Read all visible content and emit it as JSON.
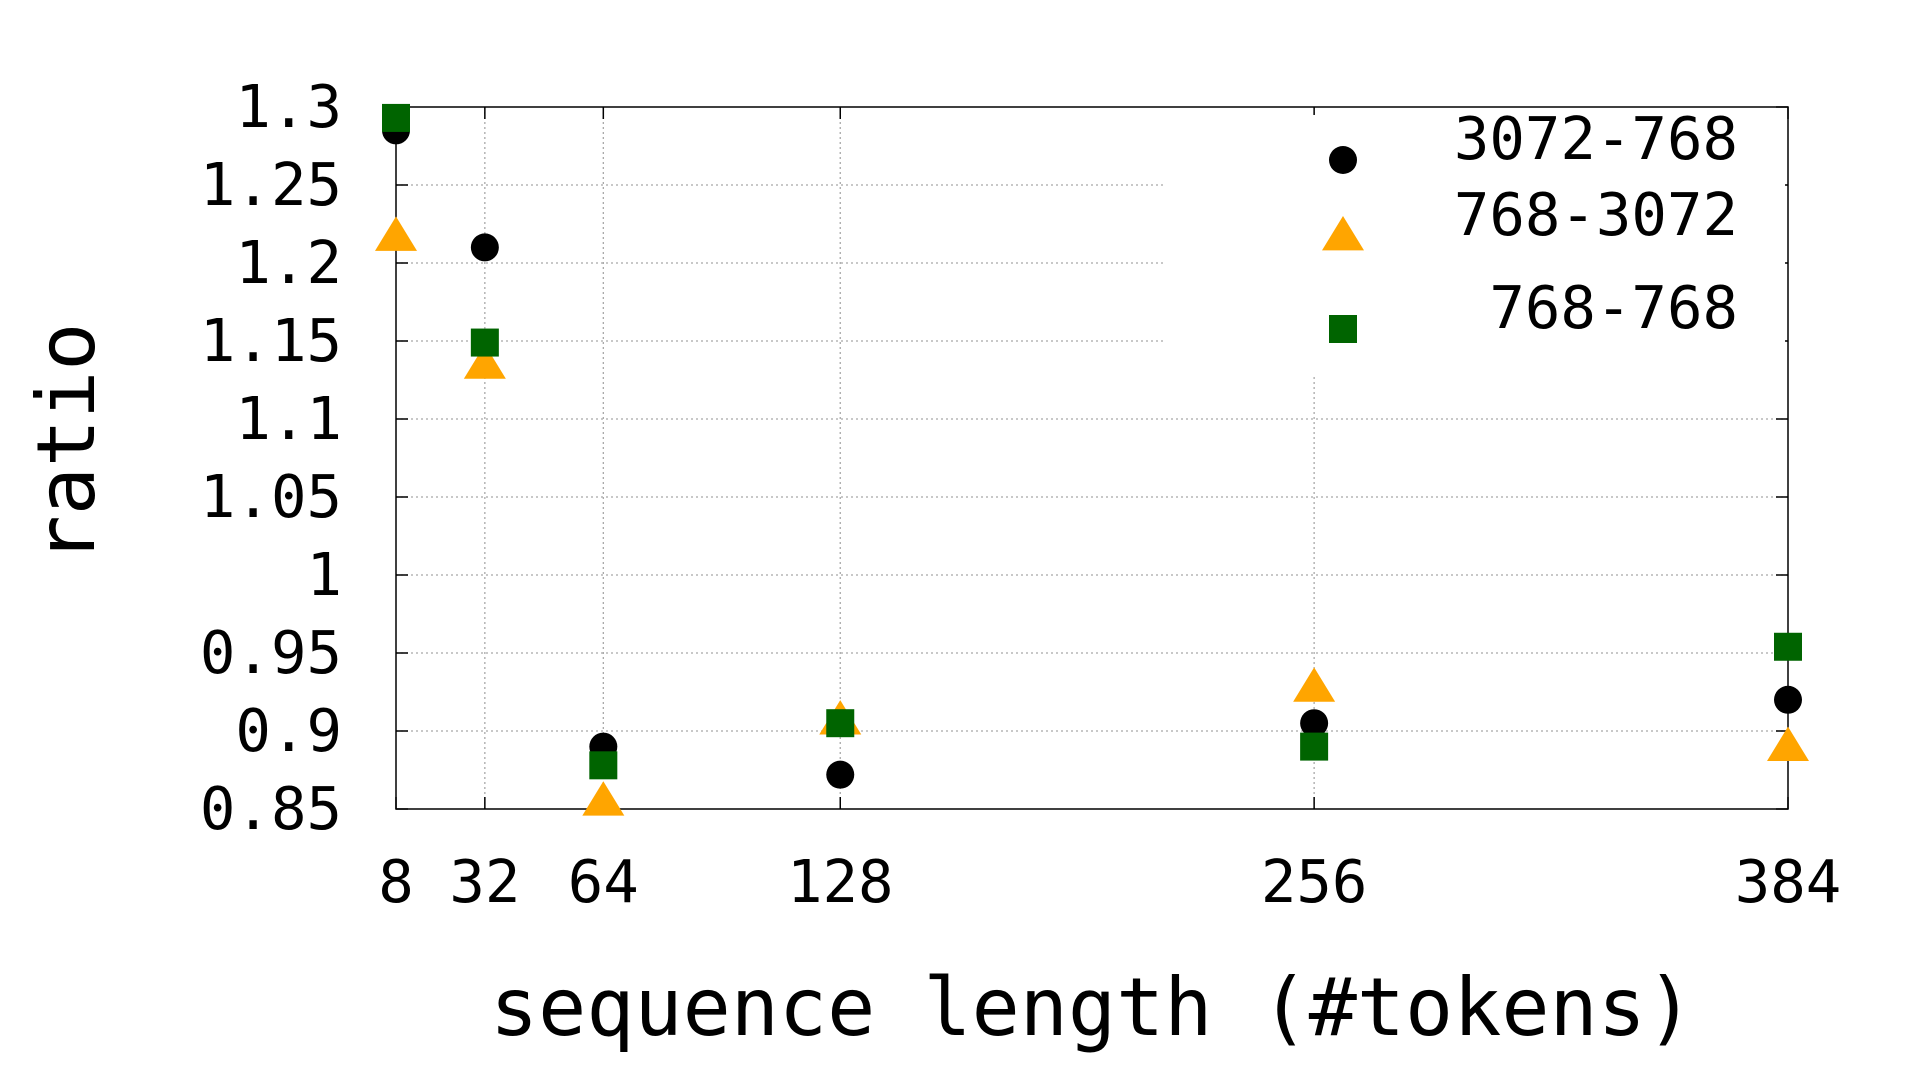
{
  "chart_data": {
    "type": "scatter",
    "title": "",
    "xlabel": "sequence length (#tokens)",
    "ylabel": "ratio",
    "x": [
      8,
      32,
      64,
      128,
      256,
      384
    ],
    "x_tick_labels": [
      "8",
      "32",
      "64",
      "128",
      "256",
      "384"
    ],
    "xlim": [
      8,
      384
    ],
    "ylim": [
      0.85,
      1.3
    ],
    "y_ticks": [
      0.85,
      0.9,
      0.95,
      1,
      1.05,
      1.1,
      1.15,
      1.2,
      1.25,
      1.3
    ],
    "y_tick_labels": [
      "0.85",
      "0.9",
      "0.95",
      "1",
      "1.05",
      "1.1",
      "1.15",
      "1.2",
      "1.25",
      "1.3"
    ],
    "grid": true,
    "legend_position": "top-right",
    "series": [
      {
        "name": "3072-768",
        "marker": "circle",
        "color": "#000000",
        "values": [
          1.285,
          1.21,
          0.89,
          0.872,
          0.905,
          0.92
        ]
      },
      {
        "name": "768-3072",
        "marker": "triangle",
        "color": "#ffa500",
        "values": [
          1.217,
          1.135,
          0.855,
          0.907,
          0.928,
          0.89
        ]
      },
      {
        "name": "768-768",
        "marker": "square",
        "color": "#006400",
        "values": [
          1.293,
          1.149,
          0.878,
          0.905,
          0.89,
          0.954
        ]
      }
    ]
  }
}
